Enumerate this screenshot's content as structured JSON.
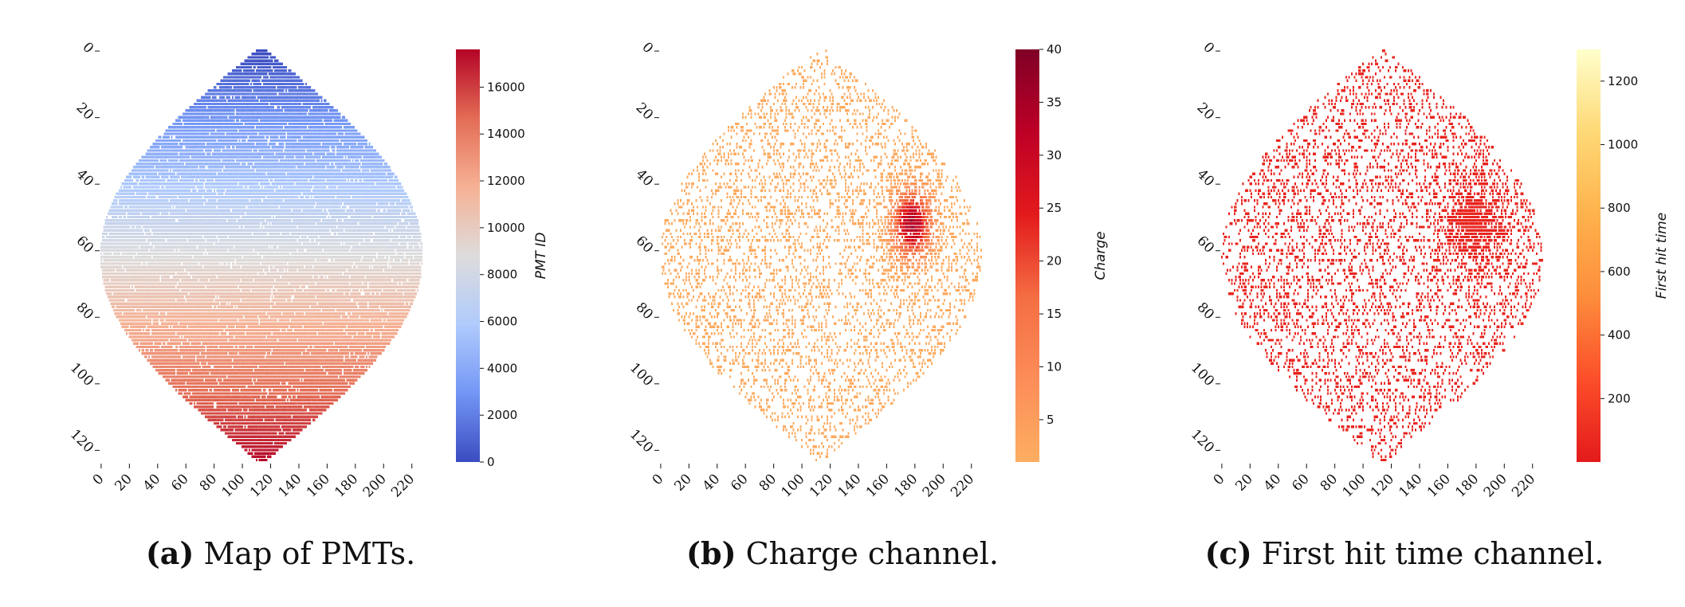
{
  "chart_data": [
    {
      "type": "heatmap",
      "panel": "a",
      "caption_tag": "(a)",
      "caption_text": "Map of PMTs.",
      "colorbar_label": "PMT ID",
      "colormap": "coolwarm",
      "colormap_colors": [
        "#3b4cc0",
        "#7396f5",
        "#b0cbfc",
        "#dddcdc",
        "#f6b194",
        "#e36c55",
        "#b40426"
      ],
      "x_ticks": [
        0,
        20,
        40,
        60,
        80,
        100,
        120,
        140,
        160,
        180,
        200,
        220
      ],
      "y_ticks": [
        0,
        20,
        40,
        60,
        80,
        100,
        120
      ],
      "xlim": [
        0,
        228
      ],
      "ylim": [
        0,
        124
      ],
      "colorbar_range": [
        0,
        17612
      ],
      "colorbar_ticks": [
        0,
        2000,
        4000,
        6000,
        8000,
        10000,
        12000,
        14000,
        16000
      ],
      "grid": false,
      "shape": "diamond-shaped PMT map, IDs increase from top (row 0) to bottom (row 124)"
    },
    {
      "type": "heatmap",
      "panel": "b",
      "caption_tag": "(b)",
      "caption_text": "Charge channel.",
      "colorbar_label": "Charge",
      "colormap": "YlOrRd",
      "colormap_colors": [
        "#fdae61",
        "#fc8d59",
        "#f46d43",
        "#e31a1c",
        "#bd0026",
        "#800026"
      ],
      "x_ticks": [
        0,
        20,
        40,
        60,
        80,
        100,
        120,
        140,
        160,
        180,
        200,
        220
      ],
      "y_ticks": [
        0,
        20,
        40,
        60,
        80,
        100,
        120
      ],
      "xlim": [
        0,
        228
      ],
      "ylim": [
        0,
        124
      ],
      "colorbar_range": [
        1,
        40
      ],
      "colorbar_ticks": [
        5,
        10,
        15,
        20,
        25,
        30,
        35,
        40
      ],
      "hotspot": {
        "x": 178,
        "y": 52,
        "peak": 40
      },
      "grid": false
    },
    {
      "type": "heatmap",
      "panel": "c",
      "caption_tag": "(c)",
      "caption_text": "First hit time channel.",
      "colorbar_label": "First hit time",
      "colormap": "YlOrRd_r",
      "colormap_colors": [
        "#e31a1c",
        "#fc4e2a",
        "#fd8d3c",
        "#feb24c",
        "#fed976",
        "#ffffcc"
      ],
      "x_ticks": [
        0,
        20,
        40,
        60,
        80,
        100,
        120,
        140,
        160,
        180,
        200,
        220
      ],
      "y_ticks": [
        0,
        20,
        40,
        60,
        80,
        100,
        120
      ],
      "xlim": [
        0,
        228
      ],
      "ylim": [
        0,
        124
      ],
      "colorbar_range": [
        0,
        1300
      ],
      "colorbar_ticks": [
        200,
        400,
        600,
        800,
        1000,
        1200
      ],
      "hotspot": {
        "x": 178,
        "y": 52
      },
      "grid": false
    }
  ]
}
